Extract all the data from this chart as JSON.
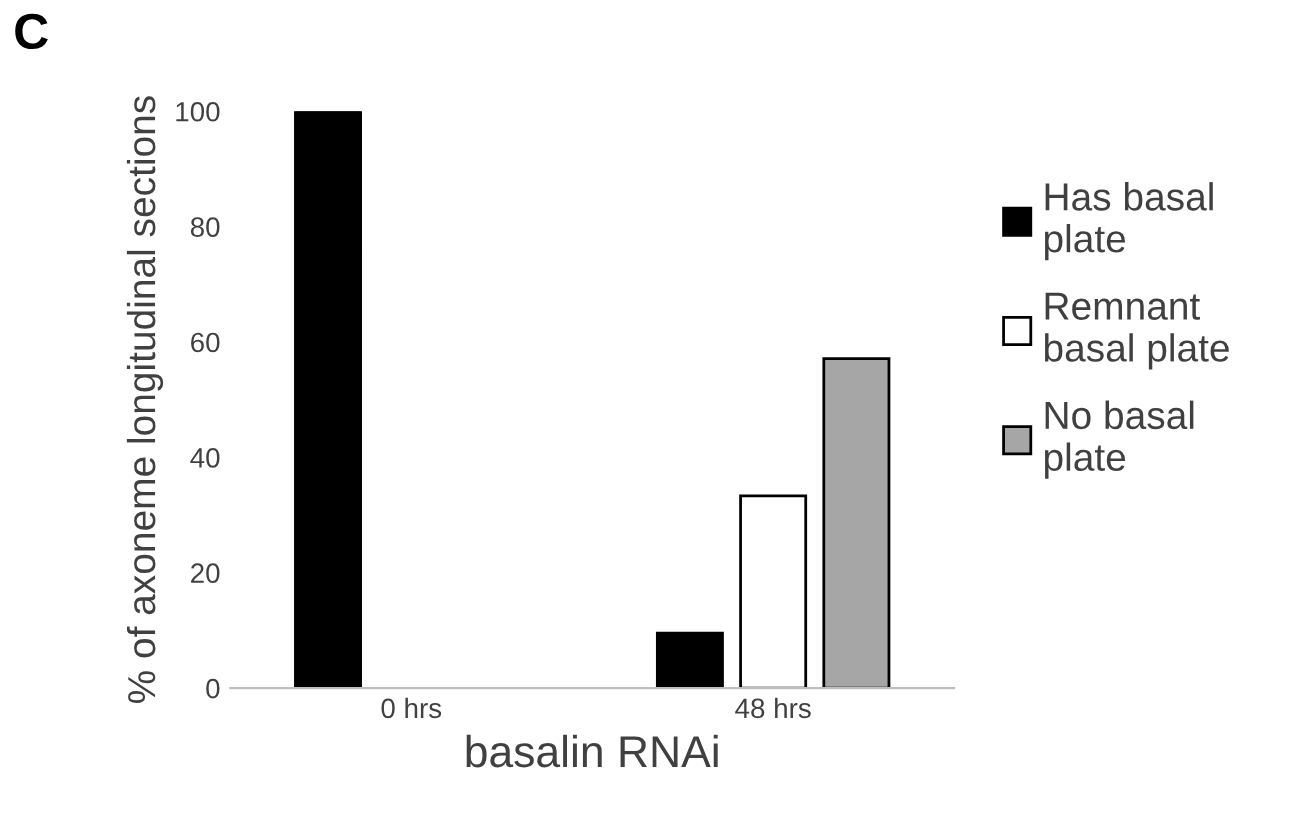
{
  "chart_data": {
    "type": "bar",
    "categories": [
      "0 hrs",
      "48 hrs"
    ],
    "series": [
      {
        "name": "Has basal plate",
        "color": "#000000",
        "values": [
          100,
          9.5
        ]
      },
      {
        "name": "Remnant basal plate",
        "color": "#ffffff",
        "values": [
          0,
          33.3
        ]
      },
      {
        "name": "No basal plate",
        "color": "#a6a6a6",
        "values": [
          0,
          57.1
        ]
      }
    ],
    "xlabel": "basalin RNAi",
    "ylabel": "% of axoneme longitudinal sections",
    "ylim": [
      0,
      100
    ],
    "yticks": [
      0,
      20,
      40,
      60,
      80,
      100
    ],
    "grid": false,
    "legend": "right",
    "annotations": [
      "C"
    ]
  }
}
